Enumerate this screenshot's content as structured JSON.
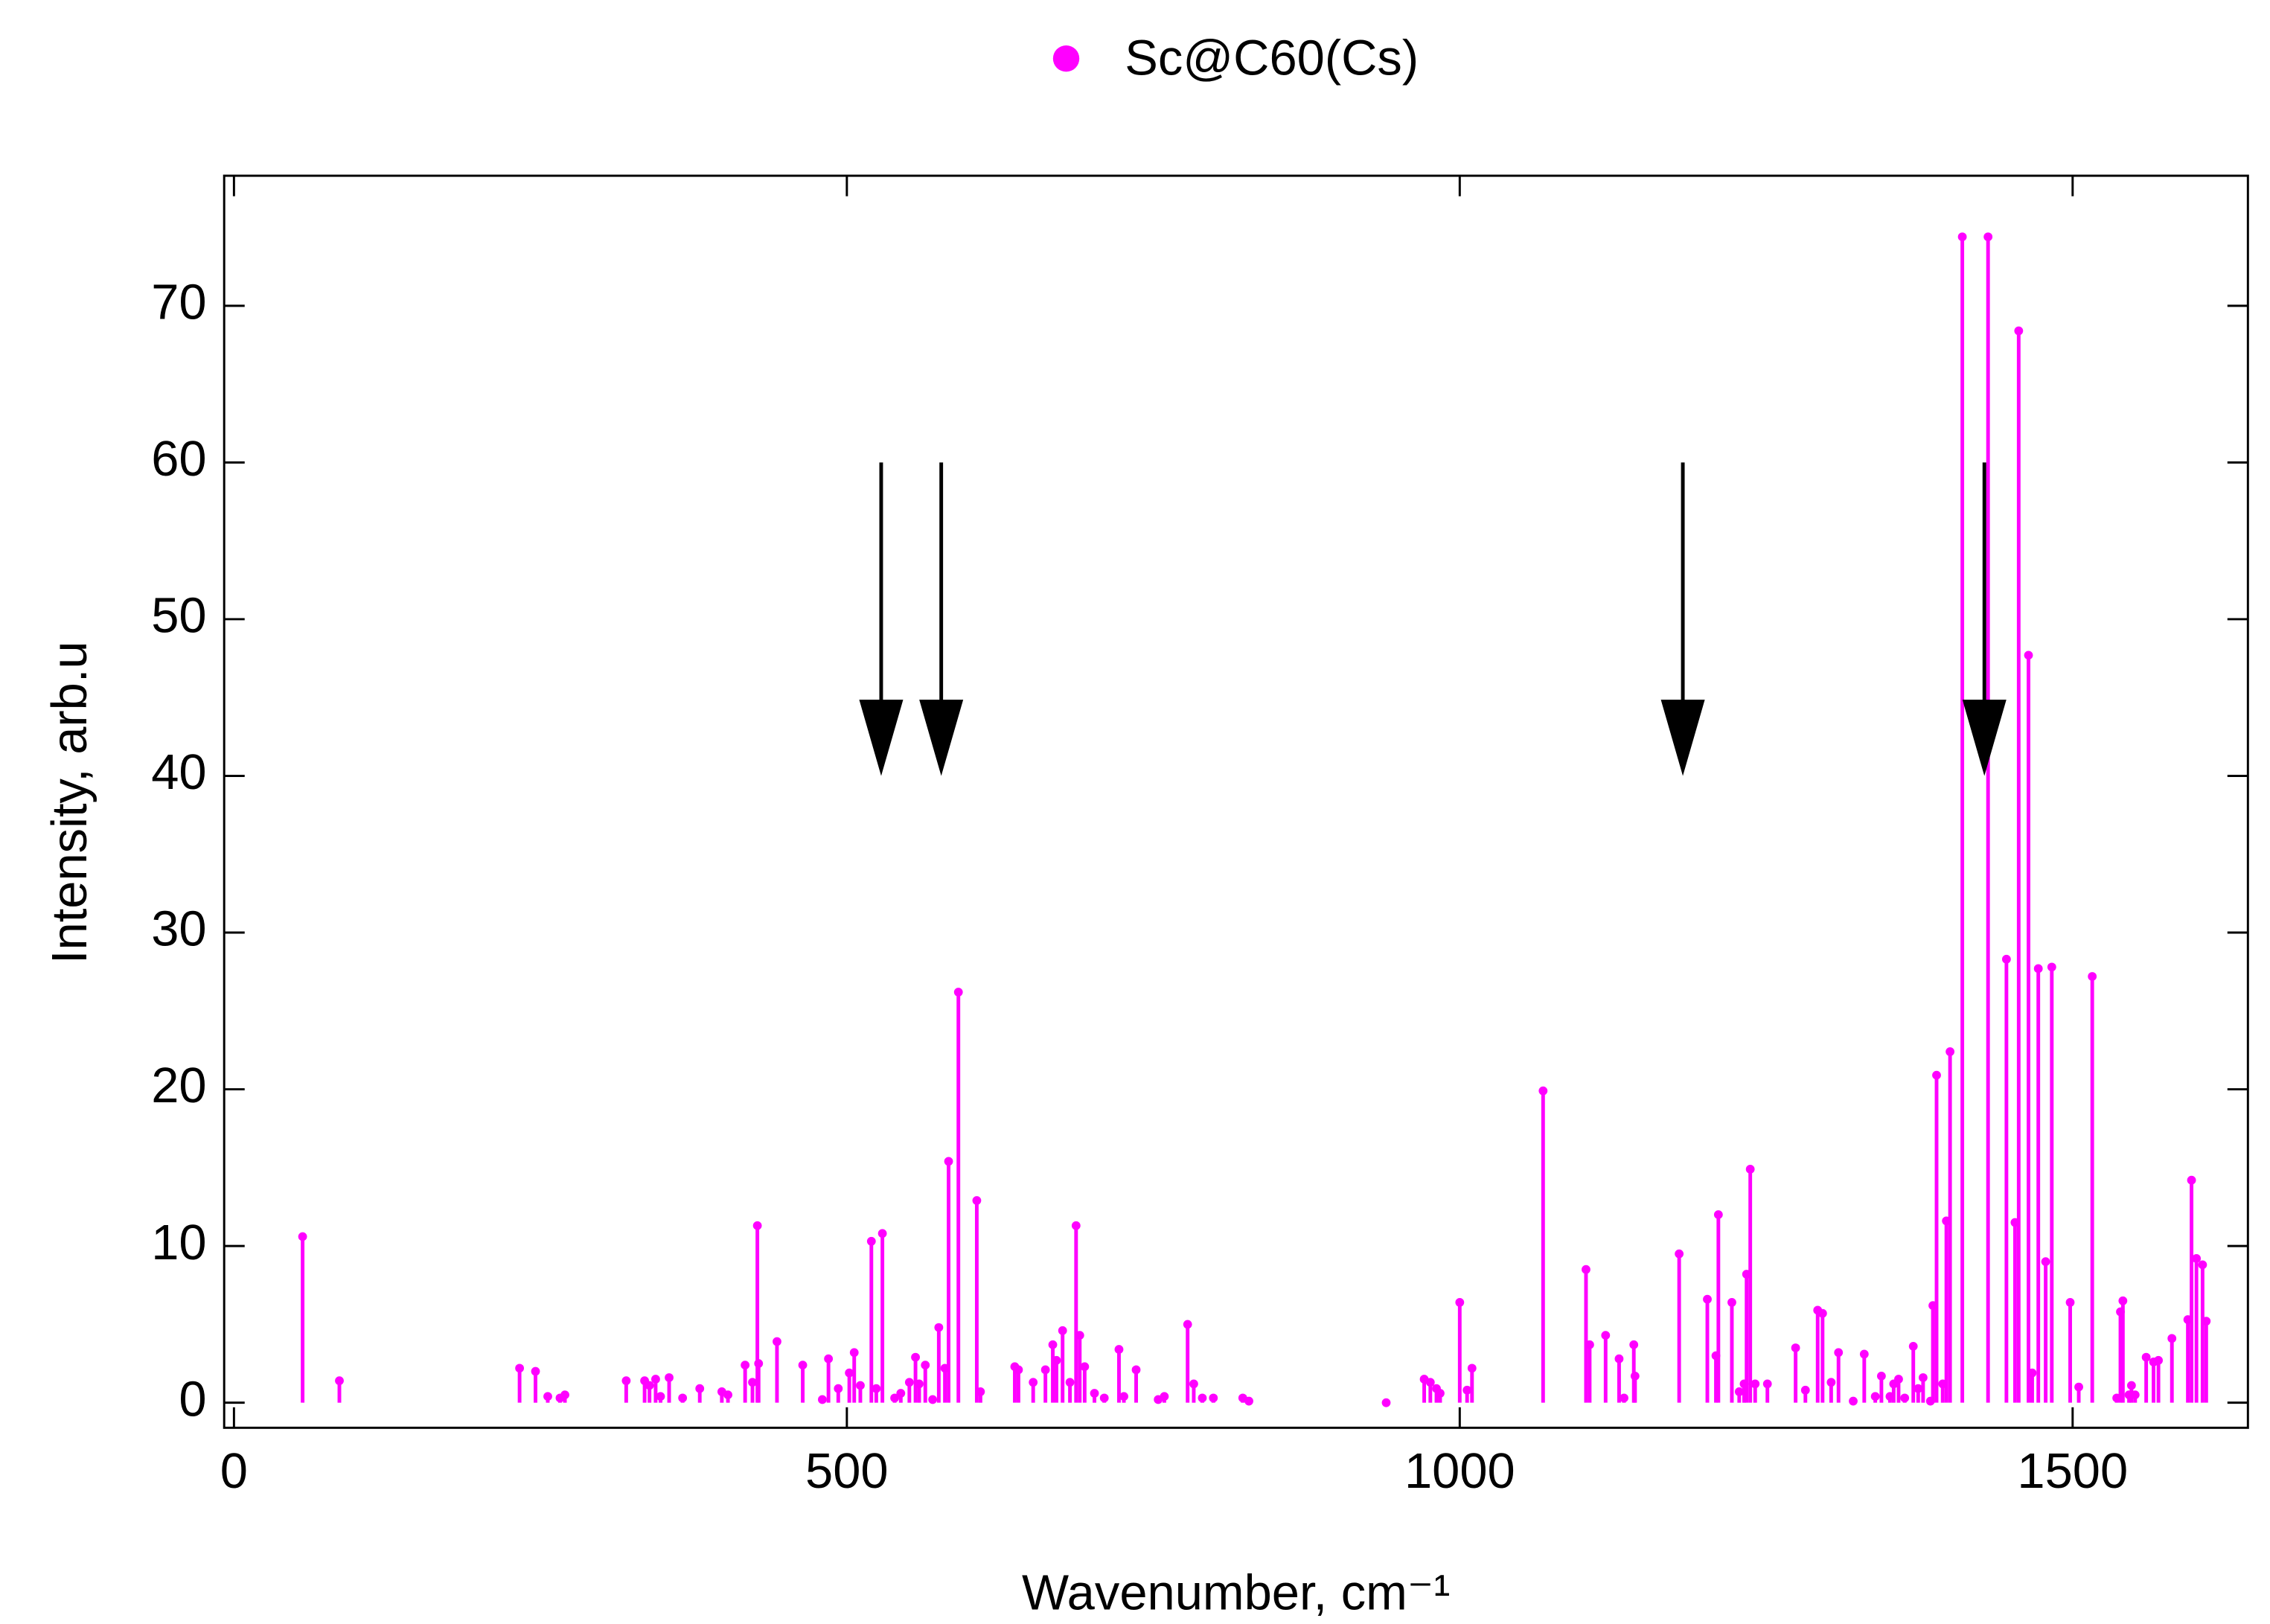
{
  "chart_data": {
    "type": "stem",
    "xlabel": "Wavenumber, cm⁻¹",
    "ylabel": "Intensity, arb.u",
    "xlim": [
      -8,
      1643
    ],
    "ylim": [
      -1.6,
      78.3
    ],
    "xticks": [
      0,
      500,
      1000,
      1500
    ],
    "yticks": [
      0,
      10,
      20,
      30,
      40,
      50,
      60,
      70
    ],
    "legend": "top",
    "series": [
      {
        "name": "Sc@C60(Cs)",
        "color": "#ff00ff",
        "x": [
          56,
          86,
          233,
          246,
          256,
          266,
          270,
          320,
          335,
          339,
          344,
          348,
          355,
          366,
          380,
          398,
          403,
          417,
          423,
          427,
          428,
          443,
          464,
          480,
          485,
          493,
          502,
          506,
          511,
          520,
          524,
          529,
          539,
          544,
          551,
          556,
          559,
          564,
          570,
          575,
          580,
          583,
          591,
          606,
          609,
          637,
          640,
          652,
          662,
          668,
          671,
          676,
          682,
          687,
          690,
          694,
          702,
          710,
          722,
          726,
          736,
          754,
          759,
          778,
          783,
          790,
          799,
          823,
          828,
          940,
          971,
          976,
          981,
          984,
          1000,
          1006,
          1010,
          1068,
          1103,
          1106,
          1119,
          1130,
          1134,
          1142,
          1143,
          1179,
          1202,
          1209,
          1211,
          1222,
          1228,
          1232,
          1234,
          1237,
          1241,
          1251,
          1274,
          1282,
          1292,
          1296,
          1303,
          1309,
          1321,
          1330,
          1339,
          1344,
          1351,
          1354,
          1358,
          1363,
          1370,
          1374,
          1378,
          1384,
          1386,
          1389,
          1394,
          1397,
          1400,
          1410,
          1431,
          1446,
          1453,
          1456,
          1464,
          1467,
          1472,
          1478,
          1483,
          1498,
          1505,
          1516,
          1536,
          1539,
          1541,
          1546,
          1548,
          1551,
          1560,
          1566,
          1570,
          1581,
          1594,
          1597,
          1601,
          1606,
          1609
        ],
        "values": [
          10.6,
          1.4,
          2.2,
          2.0,
          0.4,
          0.3,
          0.5,
          1.4,
          1.4,
          1.1,
          1.5,
          0.4,
          1.6,
          0.3,
          0.9,
          0.7,
          0.5,
          2.4,
          1.3,
          11.3,
          2.5,
          3.9,
          2.4,
          0.2,
          2.8,
          0.9,
          1.9,
          3.2,
          1.1,
          10.3,
          0.9,
          10.8,
          0.3,
          0.6,
          1.3,
          2.9,
          1.2,
          2.4,
          0.2,
          4.8,
          2.2,
          15.4,
          26.2,
          12.9,
          0.7,
          2.3,
          2.1,
          1.3,
          2.1,
          3.7,
          2.7,
          4.6,
          1.3,
          11.3,
          4.3,
          2.3,
          0.6,
          0.3,
          3.4,
          0.4,
          2.1,
          0.2,
          0.4,
          5.0,
          1.2,
          0.3,
          0.3,
          0.3,
          0.1,
          0.0,
          1.5,
          1.3,
          0.9,
          0.6,
          6.4,
          0.8,
          2.2,
          19.9,
          8.5,
          3.7,
          4.3,
          2.8,
          0.3,
          3.7,
          1.7,
          9.5,
          6.6,
          3.0,
          12.0,
          6.4,
          0.7,
          1.2,
          8.2,
          14.9,
          1.2,
          1.2,
          3.5,
          0.8,
          5.9,
          5.7,
          1.3,
          3.2,
          0.1,
          3.1,
          0.4,
          1.7,
          0.4,
          1.2,
          1.5,
          0.3,
          3.6,
          0.9,
          1.6,
          0.1,
          6.2,
          20.9,
          1.2,
          11.6,
          22.4,
          74.4,
          74.4,
          28.3,
          11.5,
          68.4,
          47.7,
          1.9,
          27.7,
          9.0,
          27.8,
          6.4,
          1.0,
          27.2,
          0.3,
          5.8,
          6.5,
          0.5,
          1.1,
          0.5,
          2.9,
          2.6,
          2.7,
          4.1,
          5.3,
          14.2,
          9.2,
          8.8,
          5.2
        ]
      }
    ],
    "arrows": [
      {
        "x": 528,
        "y_start": 60,
        "y_end": 40
      },
      {
        "x": 577,
        "y_start": 60,
        "y_end": 40
      },
      {
        "x": 1182,
        "y_start": 60,
        "y_end": 40
      },
      {
        "x": 1428,
        "y_start": 60,
        "y_end": 40
      }
    ],
    "arrow_color": "#000000"
  }
}
